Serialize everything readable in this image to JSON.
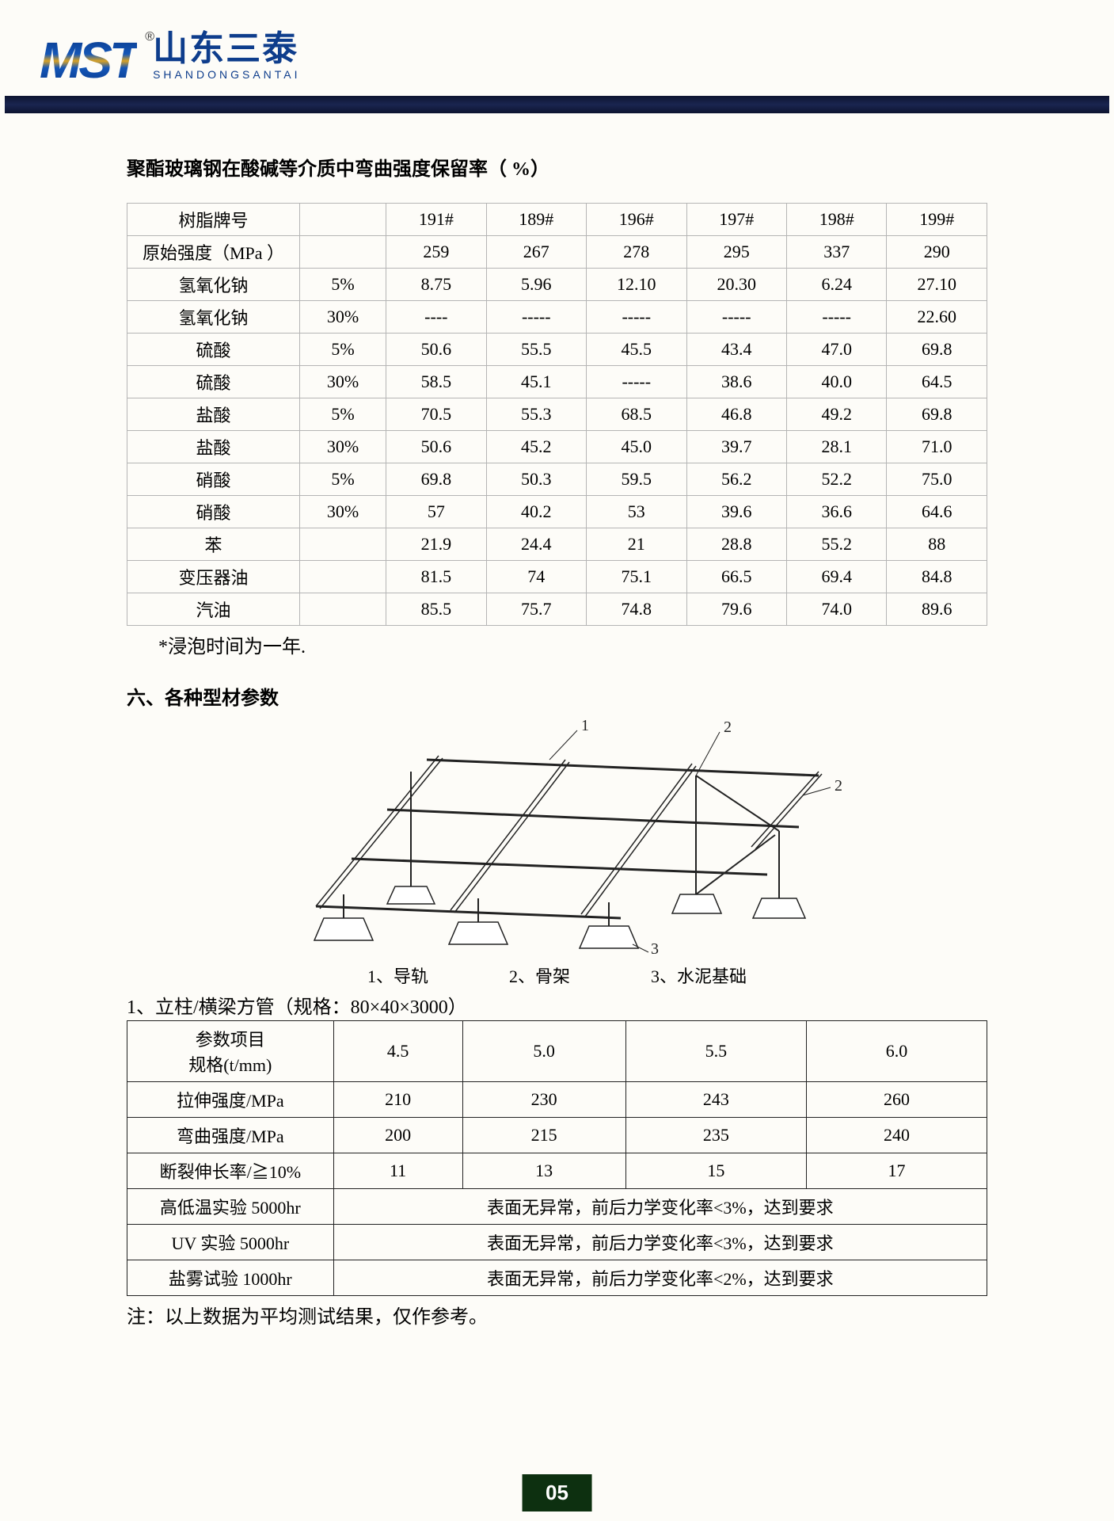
{
  "header": {
    "logo_latin": "MST",
    "logo_cn": "山东三泰",
    "logo_pinyin": "SHANDONGSANTAI"
  },
  "section1": {
    "title": "聚酯玻璃钢在酸碱等介质中弯曲强度保留率（ %）",
    "table": {
      "columns": [
        "树脂牌号",
        "",
        "191#",
        "189#",
        "196#",
        "197#",
        "198#",
        "199#"
      ],
      "rows": [
        [
          "原始强度（MPa ）",
          "",
          "259",
          "267",
          "278",
          "295",
          "337",
          "290"
        ],
        [
          "氢氧化钠",
          "5%",
          "8.75",
          "5.96",
          "12.10",
          "20.30",
          "6.24",
          "27.10"
        ],
        [
          "氢氧化钠",
          "30%",
          "----",
          "-----",
          "-----",
          "-----",
          "-----",
          "22.60"
        ],
        [
          "硫酸",
          "5%",
          "50.6",
          "55.5",
          "45.5",
          "43.4",
          "47.0",
          "69.8"
        ],
        [
          "硫酸",
          "30%",
          "58.5",
          "45.1",
          "-----",
          "38.6",
          "40.0",
          "64.5"
        ],
        [
          "盐酸",
          "5%",
          "70.5",
          "55.3",
          "68.5",
          "46.8",
          "49.2",
          "69.8"
        ],
        [
          "盐酸",
          "30%",
          "50.6",
          "45.2",
          "45.0",
          "39.7",
          "28.1",
          "71.0"
        ],
        [
          "硝酸",
          "5%",
          "69.8",
          "50.3",
          "59.5",
          "56.2",
          "52.2",
          "75.0"
        ],
        [
          "硝酸",
          "30%",
          "57",
          "40.2",
          "53",
          "39.6",
          "36.6",
          "64.6"
        ],
        [
          "苯",
          "",
          "21.9",
          "24.4",
          "21",
          "28.8",
          "55.2",
          "88"
        ],
        [
          "变压器油",
          "",
          "81.5",
          "74",
          "75.1",
          "66.5",
          "69.4",
          "84.8"
        ],
        [
          "汽油",
          "",
          "85.5",
          "75.7",
          "74.8",
          "79.6",
          "74.0",
          "89.6"
        ]
      ],
      "col_widths": [
        "20%",
        "10%",
        "11.6%",
        "11.6%",
        "11.6%",
        "11.6%",
        "11.6%",
        "11.6%"
      ]
    },
    "note": "*浸泡时间为一年."
  },
  "section2": {
    "title": "六、各种型材参数",
    "diagram": {
      "labels": {
        "l1": "1",
        "l2": "2",
        "l2b": "2",
        "l3": "3"
      },
      "caption_parts": [
        "1、导轨",
        "2、骨架",
        "3、水泥基础"
      ]
    },
    "subheading": "1、立柱/横梁方管（规格：80×40×3000）",
    "table": {
      "header_label": "参数项目\n规格(t/mm)",
      "col_headers": [
        "4.5",
        "5.0",
        "5.5",
        "6.0"
      ],
      "rows": [
        {
          "label": "拉伸强度/MPa",
          "cells": [
            "210",
            "230",
            "243",
            "260"
          ]
        },
        {
          "label": "弯曲强度/MPa",
          "cells": [
            "200",
            "215",
            "235",
            "240"
          ]
        },
        {
          "label": "断裂伸长率/≧10%",
          "cells": [
            "11",
            "13",
            "15",
            "17"
          ]
        }
      ],
      "span_rows": [
        {
          "label": "高低温实验 5000hr",
          "text": "表面无异常，前后力学变化率<3%，达到要求"
        },
        {
          "label": "UV 实验 5000hr",
          "text": "表面无异常，前后力学变化率<3%，达到要求"
        },
        {
          "label": "盐雾试验 1000hr",
          "text": "表面无异常，前后力学变化率<2%，达到要求"
        }
      ],
      "col_widths": [
        "24%",
        "15%",
        "19%",
        "21%",
        "21%"
      ]
    },
    "note": "注：以上数据为平均测试结果，仅作参考。"
  },
  "page_number": "05",
  "colors": {
    "page_bg": "#fdfcf8",
    "bar_bg": "#121c40",
    "logo_blue": "#0e3d8c",
    "table1_border": "#b5b5b5",
    "table2_border": "#222222",
    "pagenum_bg": "#0d3010"
  }
}
